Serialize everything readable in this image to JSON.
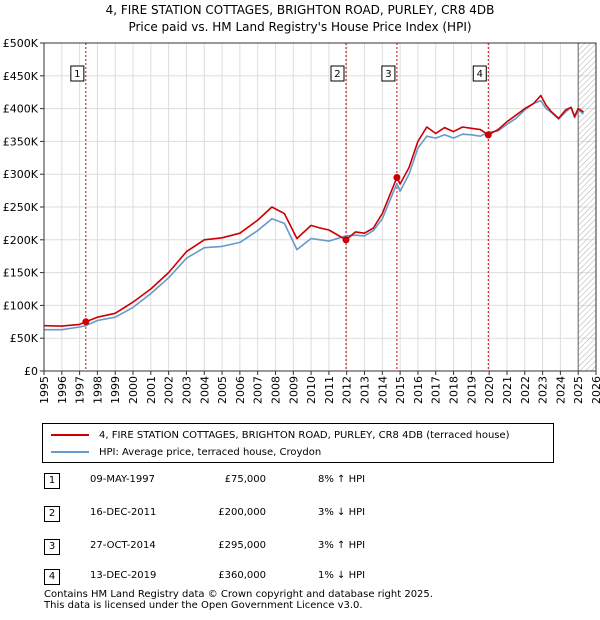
{
  "title_line1": "4, FIRE STATION COTTAGES, BRIGHTON ROAD, PURLEY, CR8 4DB",
  "title_line2": "Price paid vs. HM Land Registry's House Price Index (HPI)",
  "colors": {
    "property": "#cc0000",
    "hpi": "#6699cc",
    "grid": "#dddddd",
    "marker_line": "#cc0000",
    "hatch": "#999999"
  },
  "legend": {
    "property_label": "4, FIRE STATION COTTAGES, BRIGHTON ROAD, PURLEY, CR8 4DB (terraced house)",
    "hpi_label": "HPI: Average price, terraced house, Croydon"
  },
  "sales": [
    {
      "num": "1",
      "date": "09-MAY-1997",
      "price": "£75,000",
      "hpi": "8% ↑ HPI"
    },
    {
      "num": "2",
      "date": "16-DEC-2011",
      "price": "£200,000",
      "hpi": "3% ↓ HPI"
    },
    {
      "num": "3",
      "date": "27-OCT-2014",
      "price": "£295,000",
      "hpi": "3% ↑ HPI"
    },
    {
      "num": "4",
      "date": "13-DEC-2019",
      "price": "£360,000",
      "hpi": "1% ↓ HPI"
    }
  ],
  "footer": {
    "line1": "Contains HM Land Registry data © Crown copyright and database right 2025.",
    "line2": "This data is licensed under the Open Government Licence v3.0."
  },
  "chart_data": {
    "type": "line",
    "title": "4, FIRE STATION COTTAGES, BRIGHTON ROAD, PURLEY, CR8 4DB — Price paid vs. HM Land Registry's House Price Index (HPI)",
    "xlabel": "",
    "ylabel": "",
    "xlim": [
      1995,
      2026
    ],
    "ylim": [
      0,
      500000
    ],
    "x_ticks": [
      1995,
      1996,
      1997,
      1998,
      1999,
      2000,
      2001,
      2002,
      2003,
      2004,
      2005,
      2006,
      2007,
      2008,
      2009,
      2010,
      2011,
      2012,
      2013,
      2014,
      2015,
      2016,
      2017,
      2018,
      2019,
      2020,
      2021,
      2022,
      2023,
      2024,
      2025,
      2026
    ],
    "y_ticks": [
      0,
      50000,
      100000,
      150000,
      200000,
      250000,
      300000,
      350000,
      400000,
      450000,
      500000
    ],
    "y_tick_labels": [
      "£0",
      "£50K",
      "£100K",
      "£150K",
      "£200K",
      "£250K",
      "£300K",
      "£350K",
      "£400K",
      "£450K",
      "£500K"
    ],
    "grid": true,
    "hatched_from": 2025.0,
    "series": [
      {
        "name": "4, FIRE STATION COTTAGES, BRIGHTON ROAD, PURLEY, CR8 4DB (terraced house)",
        "x": [
          1995.0,
          1996.0,
          1997.0,
          1997.35,
          1998.0,
          1999.0,
          2000.0,
          2001.0,
          2002.0,
          2003.0,
          2004.0,
          2005.0,
          2006.0,
          2007.0,
          2007.8,
          2008.5,
          2009.2,
          2010.0,
          2010.5,
          2011.0,
          2011.96,
          2012.5,
          2013.0,
          2013.5,
          2014.0,
          2014.82,
          2015.0,
          2015.5,
          2016.0,
          2016.5,
          2017.0,
          2017.5,
          2018.0,
          2018.5,
          2019.0,
          2019.5,
          2019.95,
          2020.5,
          2021.0,
          2021.5,
          2022.0,
          2022.5,
          2022.9,
          2023.2,
          2023.5,
          2023.9,
          2024.3,
          2024.6,
          2024.8,
          2025.0,
          2025.3
        ],
        "y": [
          69000,
          68500,
          71000,
          75000,
          82000,
          88000,
          105000,
          125000,
          150000,
          182000,
          200000,
          203000,
          210000,
          230000,
          250000,
          240000,
          202000,
          222000,
          218000,
          215000,
          200000,
          212000,
          210000,
          218000,
          240000,
          295000,
          285000,
          310000,
          350000,
          372000,
          362000,
          371000,
          365000,
          372000,
          370000,
          368000,
          360000,
          368000,
          380000,
          390000,
          400000,
          408000,
          420000,
          405000,
          395000,
          385000,
          398000,
          402000,
          388000,
          400000,
          395000
        ]
      },
      {
        "name": "HPI: Average price, terraced house, Croydon",
        "x": [
          1995.0,
          1996.0,
          1997.0,
          1997.35,
          1998.0,
          1999.0,
          2000.0,
          2001.0,
          2002.0,
          2003.0,
          2004.0,
          2005.0,
          2006.0,
          2007.0,
          2007.8,
          2008.5,
          2009.2,
          2010.0,
          2010.5,
          2011.0,
          2011.96,
          2012.5,
          2013.0,
          2013.5,
          2014.0,
          2014.82,
          2015.0,
          2015.5,
          2016.0,
          2016.5,
          2017.0,
          2017.5,
          2018.0,
          2018.5,
          2019.0,
          2019.5,
          2019.95,
          2020.5,
          2021.0,
          2021.5,
          2022.0,
          2022.5,
          2022.9,
          2023.2,
          2023.5,
          2023.9,
          2024.3,
          2024.6,
          2024.8,
          2025.0,
          2025.3
        ],
        "y": [
          63000,
          63000,
          67000,
          69000,
          77000,
          82000,
          97000,
          118000,
          142000,
          172000,
          188000,
          190000,
          196000,
          214000,
          232000,
          225000,
          185000,
          202000,
          200000,
          198000,
          206000,
          207000,
          206000,
          214000,
          232000,
          286000,
          274000,
          300000,
          340000,
          358000,
          355000,
          360000,
          355000,
          361000,
          360000,
          358000,
          364000,
          366000,
          376000,
          385000,
          398000,
          408000,
          412000,
          400000,
          394000,
          384000,
          395000,
          402000,
          386000,
          398000,
          392000
        ]
      }
    ],
    "annotations": [
      {
        "label": "1",
        "x": 1997.35,
        "y": 75000
      },
      {
        "label": "2",
        "x": 2011.96,
        "y": 200000
      },
      {
        "label": "3",
        "x": 2014.82,
        "y": 295000
      },
      {
        "label": "4",
        "x": 2019.95,
        "y": 360000
      }
    ]
  }
}
